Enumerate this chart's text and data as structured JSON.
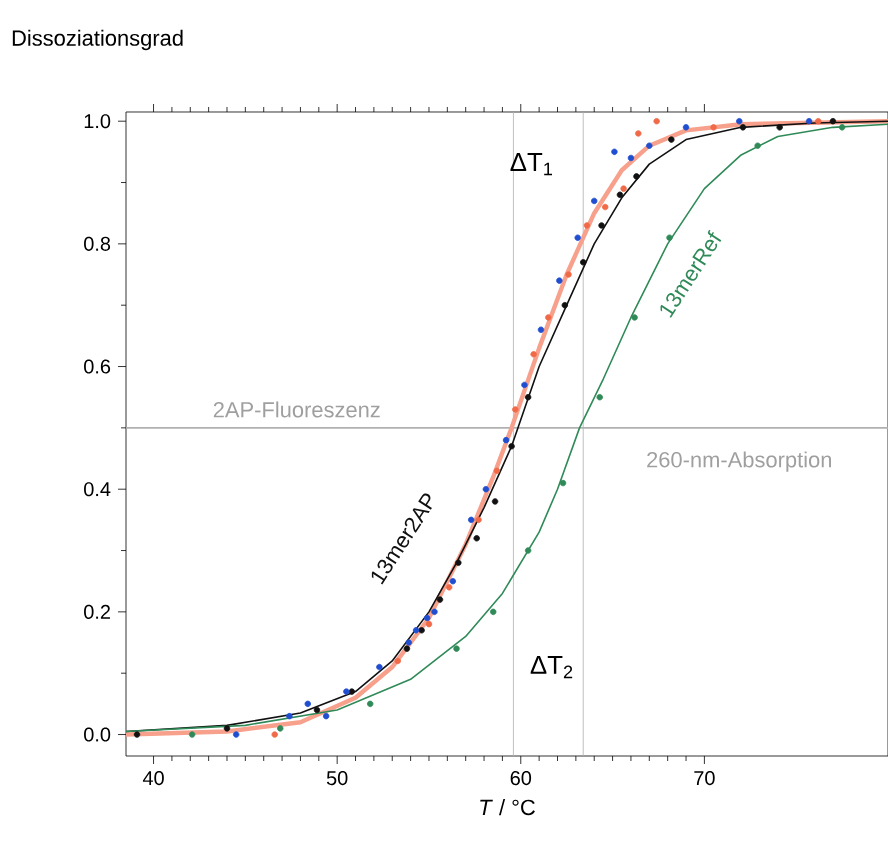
{
  "chart_data": {
    "type": "scatter",
    "xlabel": "*T* / °C",
    "ylabel": "Dissoziationsgrad",
    "xlim": [
      38.5,
      80
    ],
    "ylim": [
      -0.035,
      1.015
    ],
    "xticks": [
      40,
      50,
      60,
      70
    ],
    "yticks": [
      {
        "value": 0,
        "label": "0.0"
      },
      {
        "value": 0.2,
        "label": "0.2"
      },
      {
        "value": 0.4,
        "label": "0.4"
      },
      {
        "value": 0.6,
        "label": "0.6"
      },
      {
        "value": 0.8,
        "label": "0.8"
      },
      {
        "value": 1,
        "label": "1.0"
      }
    ],
    "grid": false,
    "series": [
      {
        "type": "line",
        "marker": "none",
        "color": "#f7a08c",
        "x": [
          38.5,
          44,
          48,
          51,
          53,
          55,
          57,
          58.5,
          59.5,
          61,
          62.5,
          64,
          65.5,
          67,
          69,
          72,
          80
        ],
        "values": [
          0,
          0.005,
          0.02,
          0.06,
          0.11,
          0.19,
          0.31,
          0.42,
          0.5,
          0.63,
          0.75,
          0.85,
          0.92,
          0.96,
          0.985,
          0.995,
          1.0
        ]
      },
      {
        "marker": "circle",
        "color": "#f06a48",
        "x": [
          46.6,
          53.3,
          55.0,
          56.1,
          57.7,
          58.7,
          59.7,
          60.7,
          61.5,
          62.6,
          63.6,
          64.6,
          65.6,
          66.4,
          67.4,
          70.5,
          76.2
        ],
        "values": [
          0.0,
          0.12,
          0.18,
          0.24,
          0.35,
          0.43,
          0.53,
          0.62,
          0.68,
          0.75,
          0.83,
          0.86,
          0.89,
          0.98,
          1.0,
          0.99,
          1.0
        ]
      },
      {
        "type": "line",
        "marker": "none",
        "name": "13mer2AP",
        "color": "#111111",
        "x": [
          38.5,
          44,
          48,
          51,
          53,
          55,
          56.5,
          58,
          59.5,
          61,
          62.5,
          64,
          65.5,
          67,
          69,
          72,
          76,
          80
        ],
        "values": [
          0.005,
          0.015,
          0.035,
          0.07,
          0.12,
          0.2,
          0.28,
          0.37,
          0.47,
          0.6,
          0.7,
          0.8,
          0.875,
          0.93,
          0.97,
          0.99,
          0.997,
          1.0
        ]
      },
      {
        "marker": "circle",
        "color": "#111111",
        "x": [
          39.1,
          44.0,
          48.9,
          50.8,
          53.8,
          54.6,
          55.6,
          56.6,
          57.6,
          58.6,
          59.5,
          60.4,
          62.4,
          63.4,
          64.4,
          65.4,
          66.3,
          68.2,
          72.1,
          74.1,
          77.0
        ],
        "values": [
          0.0,
          0.01,
          0.04,
          0.07,
          0.14,
          0.17,
          0.22,
          0.28,
          0.32,
          0.38,
          0.47,
          0.55,
          0.7,
          0.77,
          0.83,
          0.88,
          0.91,
          0.97,
          0.99,
          0.99,
          1.0
        ]
      },
      {
        "marker": "circle",
        "color": "#1f4fd0",
        "x": [
          44.5,
          47.4,
          48.4,
          49.4,
          50.5,
          52.3,
          53.9,
          54.3,
          54.9,
          55.3,
          56.3,
          57.3,
          58.1,
          59.2,
          60.2,
          61.1,
          62.1,
          63.1,
          64.0,
          65.1,
          66.0,
          67.0,
          69.0,
          71.9,
          75.7
        ],
        "values": [
          0.0,
          0.03,
          0.05,
          0.03,
          0.07,
          0.11,
          0.15,
          0.17,
          0.19,
          0.2,
          0.25,
          0.35,
          0.4,
          0.48,
          0.57,
          0.66,
          0.74,
          0.81,
          0.87,
          0.95,
          0.94,
          0.96,
          0.99,
          1.0,
          1.0
        ]
      },
      {
        "type": "line",
        "marker": "none",
        "name": "13merRef",
        "color": "#2f8a58",
        "x": [
          38.5,
          45,
          50,
          54,
          57,
          59,
          61,
          62,
          63.2,
          64.5,
          66,
          68,
          70,
          72,
          74,
          77,
          80
        ],
        "values": [
          0.005,
          0.015,
          0.04,
          0.09,
          0.16,
          0.23,
          0.33,
          0.4,
          0.5,
          0.58,
          0.68,
          0.8,
          0.89,
          0.945,
          0.975,
          0.99,
          0.995
        ]
      },
      {
        "marker": "circle",
        "color": "#2f8a58",
        "x": [
          42.1,
          46.9,
          51.8,
          56.5,
          58.5,
          60.4,
          62.3,
          64.3,
          66.2,
          68.1,
          72.9,
          77.5
        ],
        "values": [
          0.0,
          0.01,
          0.05,
          0.14,
          0.2,
          0.3,
          0.41,
          0.55,
          0.68,
          0.81,
          0.96,
          0.99
        ]
      }
    ],
    "ref_lines": [
      {
        "axis": "x",
        "value": 59.6,
        "color": "#b0b0b0"
      },
      {
        "axis": "x",
        "value": 63.4,
        "color": "#b0b0b0"
      },
      {
        "axis": "y",
        "value": 0.5,
        "color": "#b0b0b0"
      }
    ],
    "annotations": [
      "ΔT$_{1}$",
      "ΔT$_{2}$",
      "2AP-Fluoreszenz",
      "260-nm-Absorption"
    ]
  }
}
